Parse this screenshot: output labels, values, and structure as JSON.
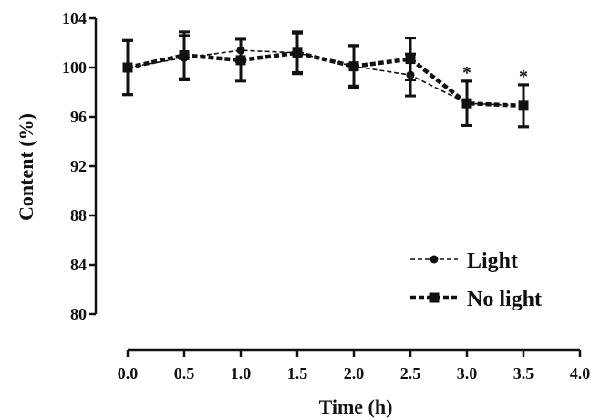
{
  "chart_data": {
    "type": "line",
    "xlabel": "Time (h)",
    "ylabel": "Content (%)",
    "xlim": [
      0.0,
      4.0
    ],
    "ylim": [
      80,
      104
    ],
    "x_ticks": [
      "0.0",
      "0.5",
      "1.0",
      "1.5",
      "2.0",
      "2.5",
      "3.0",
      "3.5",
      "4.0"
    ],
    "y_ticks": [
      "80",
      "84",
      "88",
      "92",
      "96",
      "100",
      "104"
    ],
    "grid": false,
    "legend_position": "bottom-right",
    "series": [
      {
        "name": "Light",
        "marker": "circle",
        "line_style": "thin-dashed",
        "x": [
          0.0,
          0.5,
          1.0,
          1.5,
          2.0,
          2.5,
          3.0,
          3.5
        ],
        "values": [
          100.0,
          100.8,
          101.4,
          101.2,
          100.1,
          99.4,
          97.1,
          96.9
        ],
        "errors": [
          2.2,
          1.8,
          0.9,
          1.6,
          1.6,
          1.7,
          1.8,
          1.7
        ]
      },
      {
        "name": "No light",
        "marker": "square",
        "line_style": "thick-dashed",
        "x": [
          0.0,
          0.5,
          1.0,
          1.5,
          2.0,
          2.5,
          3.0,
          3.5
        ],
        "values": [
          100.0,
          101.0,
          100.6,
          101.2,
          100.1,
          100.7,
          97.1,
          96.9
        ],
        "errors": [
          2.2,
          1.9,
          1.7,
          1.7,
          1.7,
          1.7,
          1.8,
          1.7
        ]
      }
    ],
    "annotations": [
      {
        "x": 3.0,
        "text": "*"
      },
      {
        "x": 3.5,
        "text": "*"
      }
    ],
    "colors": {
      "line": "#111111",
      "background": "#ffffff"
    }
  }
}
